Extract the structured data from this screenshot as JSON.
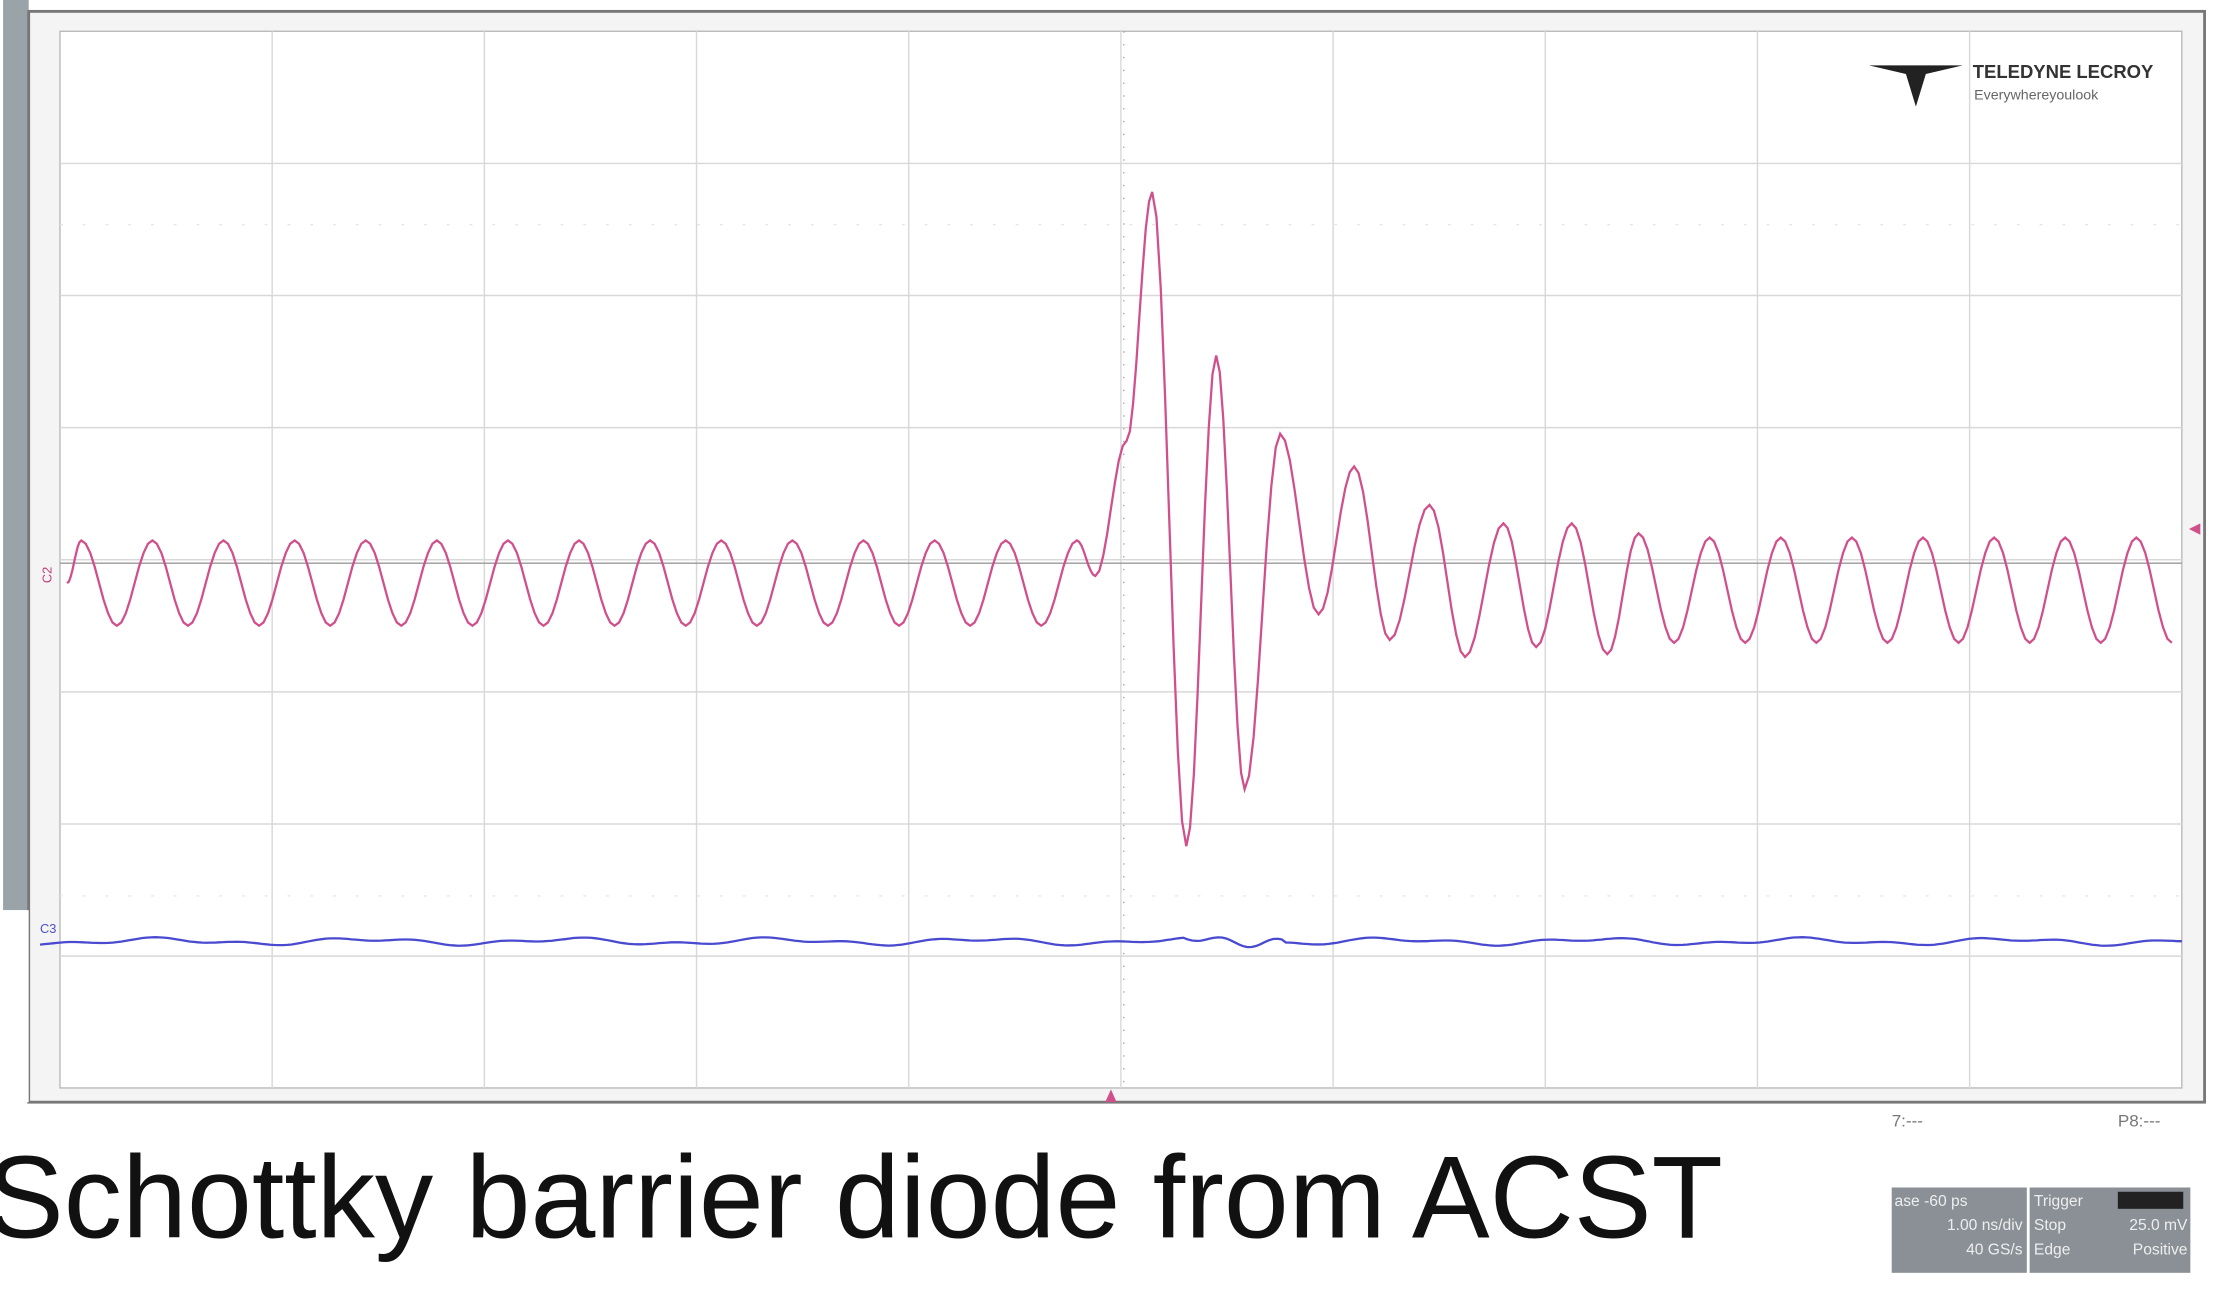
{
  "scope": {
    "brand": "TELEDYNE LECROY",
    "tagline": "Everywhereyoulook",
    "channels": [
      "C2",
      "C3"
    ],
    "slots": [
      "7:---",
      "P8:---"
    ],
    "timebase": {
      "label": "ase -60 ps",
      "scale": "1.00 ns/div",
      "rate": "40 GS/s"
    },
    "trigger": {
      "label": "Trigger",
      "mode": "Stop",
      "level": "25.0 mV",
      "type": "Edge",
      "slope": "Positive"
    }
  },
  "caption": "Schottky barrier diode from ACST"
}
